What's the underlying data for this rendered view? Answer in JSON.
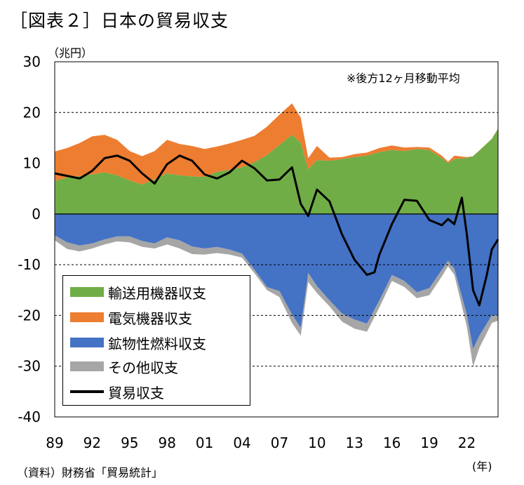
{
  "title": "［図表２］日本の貿易収支",
  "unit_label": "（兆円）",
  "source": "（資料）財務省「貿易統計」",
  "chart_data": {
    "type": "area",
    "note": "※後方12ヶ月移動平均",
    "xunit": "(年)",
    "ylim": [
      -40,
      30
    ],
    "yticks": [
      30,
      20,
      10,
      0,
      -10,
      -20,
      -30,
      -40
    ],
    "xlim": [
      1989,
      2024.5
    ],
    "xticks": [
      {
        "x": 1989,
        "label": "89"
      },
      {
        "x": 1992,
        "label": "92"
      },
      {
        "x": 1995,
        "label": "95"
      },
      {
        "x": 1998,
        "label": "98"
      },
      {
        "x": 2001,
        "label": "01"
      },
      {
        "x": 2004,
        "label": "04"
      },
      {
        "x": 2007,
        "label": "07"
      },
      {
        "x": 2010,
        "label": "10"
      },
      {
        "x": 2013,
        "label": "13"
      },
      {
        "x": 2016,
        "label": "16"
      },
      {
        "x": 2019,
        "label": "19"
      },
      {
        "x": 2022,
        "label": "22"
      }
    ],
    "grid": "dashed horizontal at 20, -10, -20, -30",
    "legend_position": "bottom-left",
    "x": [
      1989,
      1990,
      1991,
      1992,
      1993,
      1994,
      1995,
      1996,
      1997,
      1998,
      1999,
      2000,
      2001,
      2002,
      2003,
      2004,
      2005,
      2006,
      2007,
      2008,
      2008.7,
      2009.3,
      2010,
      2011,
      2012,
      2013,
      2014,
      2015,
      2016,
      2017,
      2018,
      2019,
      2020,
      2020.5,
      2021,
      2022,
      2022.5,
      2023,
      2024,
      2024.5
    ],
    "series": [
      {
        "name": "輸送用機器収支",
        "color": "#70ad47",
        "values": [
          6.5,
          7.2,
          7.5,
          7.8,
          8.2,
          7.6,
          6.6,
          5.8,
          6.8,
          8.0,
          7.6,
          7.4,
          7.3,
          8.3,
          8.7,
          9.2,
          10.2,
          11.6,
          13.6,
          15.6,
          14.0,
          8.8,
          10.6,
          10.5,
          10.8,
          11.2,
          11.5,
          12.2,
          12.6,
          12.4,
          12.8,
          12.6,
          11.0,
          10.0,
          10.8,
          11.0,
          11.4,
          12.5,
          14.8,
          16.8
        ]
      },
      {
        "name": "電気機器収支",
        "color": "#ed7d31",
        "values": [
          5.8,
          5.8,
          6.5,
          7.5,
          7.4,
          7.0,
          5.8,
          5.6,
          5.6,
          6.6,
          6.2,
          6.0,
          5.5,
          5.0,
          5.2,
          5.4,
          5.2,
          5.6,
          6.0,
          6.2,
          5.0,
          2.2,
          2.8,
          0.6,
          0.4,
          0.6,
          0.6,
          0.8,
          0.9,
          0.7,
          0.4,
          0.5,
          0.5,
          0.3,
          0.7,
          0.2,
          0.0,
          -0.3,
          -0.5,
          -0.5
        ]
      },
      {
        "name": "鉱物性燃料収支",
        "color": "#4472c4",
        "values": [
          -4.2,
          -5.6,
          -6.2,
          -5.8,
          -5.0,
          -4.4,
          -4.4,
          -5.3,
          -5.8,
          -4.6,
          -5.2,
          -6.4,
          -6.8,
          -6.5,
          -7.0,
          -7.8,
          -11.0,
          -14.4,
          -15.2,
          -19.8,
          -22.4,
          -11.6,
          -14.2,
          -17.0,
          -19.6,
          -20.8,
          -21.6,
          -17.0,
          -12.0,
          -13.2,
          -15.4,
          -14.6,
          -11.0,
          -9.2,
          -10.8,
          -19.8,
          -26.6,
          -24.0,
          -20.0,
          -20.0
        ]
      },
      {
        "name": "その他収支",
        "color": "#a6a6a6",
        "values": [
          -1.0,
          -1.3,
          -1.2,
          -1.0,
          -1.0,
          -1.0,
          -1.2,
          -1.2,
          -1.0,
          -1.4,
          -1.6,
          -1.5,
          -1.2,
          -1.2,
          -1.0,
          -0.8,
          -0.7,
          -0.6,
          -1.2,
          -1.7,
          -1.6,
          -1.8,
          -1.4,
          -1.2,
          -1.6,
          -1.8,
          -1.6,
          -1.4,
          -1.2,
          -1.2,
          -1.2,
          -1.4,
          -1.3,
          -1.1,
          -1.2,
          -2.4,
          -3.5,
          -2.4,
          -1.5,
          -1.0
        ]
      },
      {
        "name": "貿易収支",
        "color": "#000000",
        "type": "line",
        "x": [
          1989,
          1990,
          1991,
          1992,
          1993,
          1994,
          1995,
          1996,
          1997,
          1998,
          1999,
          2000,
          2001,
          2002,
          2003,
          2004,
          2005,
          2006,
          2007,
          2008,
          2008.7,
          2009.3,
          2010,
          2011,
          2012,
          2013,
          2014,
          2014.6,
          2015,
          2016,
          2017,
          2018,
          2019,
          2020,
          2020.5,
          2021,
          2021.6,
          2022,
          2022.5,
          2023,
          2023.6,
          2024,
          2024.5
        ],
        "values": [
          8.0,
          7.5,
          7.0,
          8.5,
          11.0,
          11.5,
          10.5,
          8.0,
          6.0,
          9.8,
          11.5,
          10.5,
          7.8,
          7.0,
          8.2,
          10.5,
          9.0,
          6.6,
          6.8,
          9.2,
          2.0,
          -0.4,
          4.8,
          2.5,
          -4.0,
          -9.0,
          -12.0,
          -11.5,
          -8.0,
          -2.0,
          2.8,
          2.6,
          -1.2,
          -2.2,
          -1.0,
          -2.0,
          3.2,
          -4.0,
          -15.0,
          -18.0,
          -12.0,
          -7.0,
          -5.0
        ]
      }
    ]
  }
}
